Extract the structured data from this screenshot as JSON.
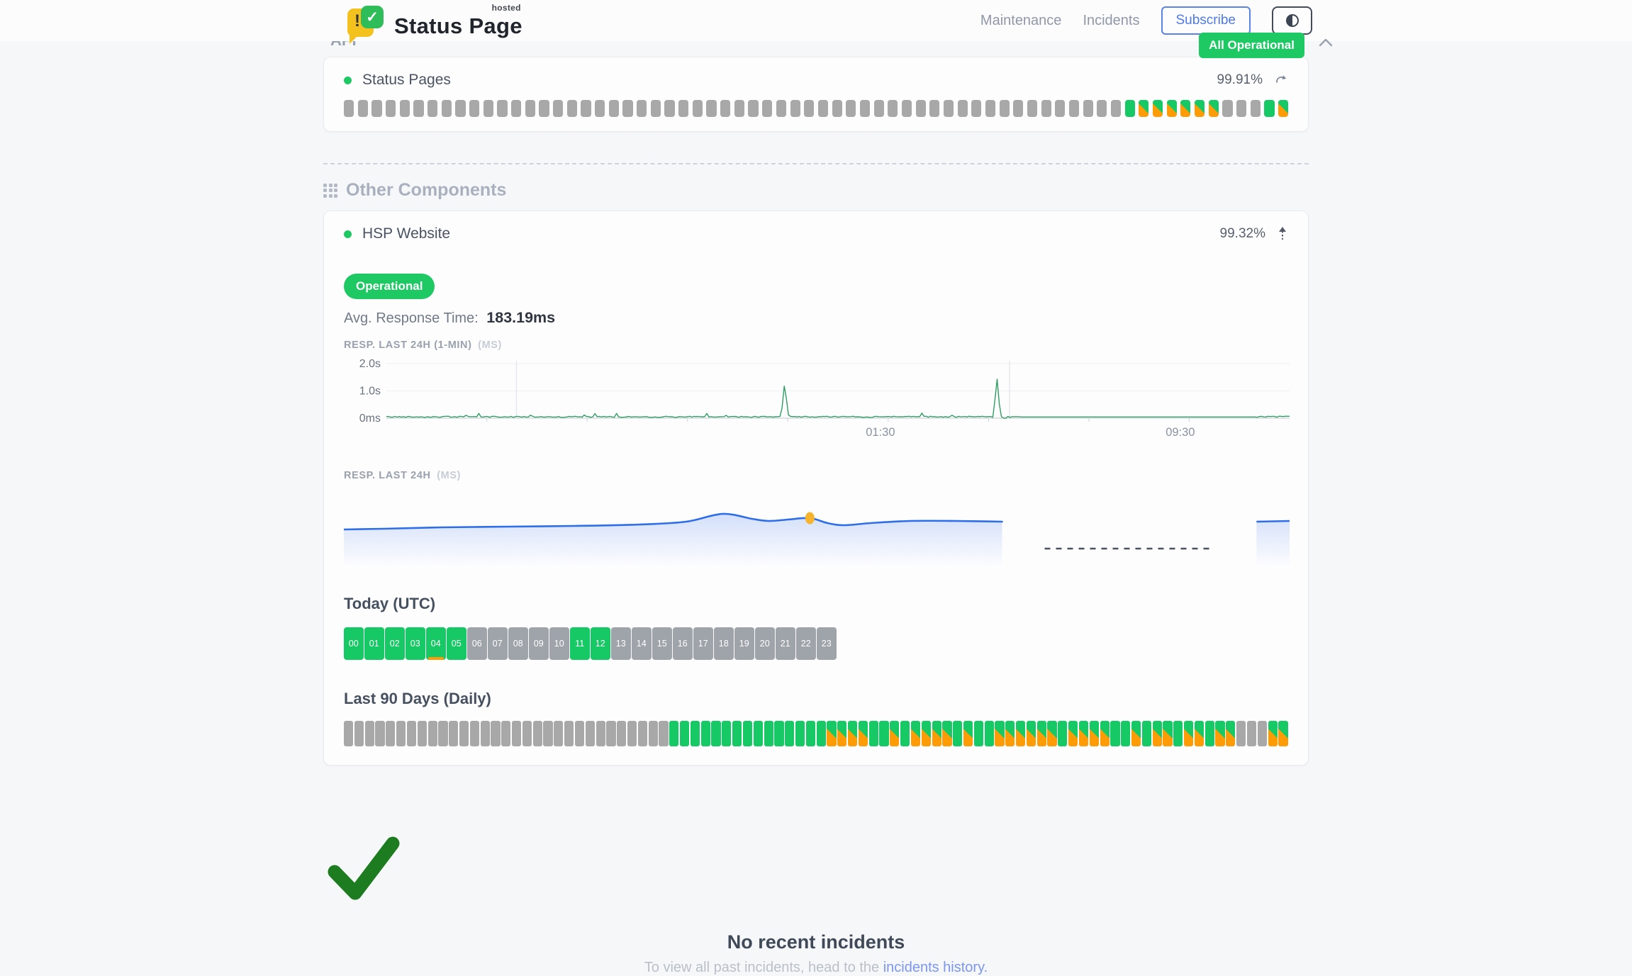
{
  "header": {
    "brand": {
      "title": "Status Page",
      "superscript": "hosted",
      "logo_mark": "!",
      "logo_check": "✓"
    },
    "nav": [
      {
        "label": "Maintenance"
      },
      {
        "label": "Incidents"
      }
    ],
    "subscribe_label": "Subscribe",
    "overall_status": "All Operational"
  },
  "icons": {
    "theme_toggle": "half-filled-circle",
    "refresh": "curved-arrow",
    "trend_up": "dashed-up-arrow",
    "chevron_up": "chevron-up",
    "section_grid": "grid-3x3-dots",
    "status_dot": "green-circle",
    "success_check": "checkmark"
  },
  "colors": {
    "operational_green": "#1ec964",
    "degraded_orange": "#ff9b05",
    "nodata_gray": "#a8a8a9",
    "line_green": "#2f9e63",
    "line_blue": "#2e6ee8",
    "marker_yellow": "#f6b32b",
    "link_blue": "#7b97ee"
  },
  "sections": {
    "api": {
      "title": "API"
    },
    "other": {
      "title": "Other Components"
    }
  },
  "components": {
    "status_pages": {
      "name": "Status Pages",
      "uptime": "99.91%",
      "bars": "uuuuuuuuuuuuuuuuuuuuuuuuuuuuuuuuuuuuuuuuuuuuuuuuuuuuuuuuoppppppuuuop"
    },
    "hsp_website": {
      "name": "HSP Website",
      "uptime": "99.32%",
      "status_badge": "Operational",
      "avg_response_label": "Avg. Response Time:",
      "avg_response_value": "183.19ms",
      "chart1_label": "RESP. LAST 24H (1-MIN)",
      "chart1_unit": "(MS)",
      "chart2_label": "RESP. LAST 24H",
      "chart2_unit": "(MS)",
      "today_heading": "Today (UTC)",
      "hours": [
        {
          "label": "00",
          "state": "up"
        },
        {
          "label": "01",
          "state": "up"
        },
        {
          "label": "02",
          "state": "up"
        },
        {
          "label": "03",
          "state": "up"
        },
        {
          "label": "04",
          "state": "up",
          "marker": true
        },
        {
          "label": "05",
          "state": "up"
        },
        {
          "label": "06",
          "state": "nodata"
        },
        {
          "label": "07",
          "state": "nodata"
        },
        {
          "label": "08",
          "state": "nodata"
        },
        {
          "label": "09",
          "state": "nodata"
        },
        {
          "label": "10",
          "state": "nodata"
        },
        {
          "label": "11",
          "state": "up"
        },
        {
          "label": "12",
          "state": "up"
        },
        {
          "label": "13",
          "state": "nodata"
        },
        {
          "label": "14",
          "state": "nodata"
        },
        {
          "label": "15",
          "state": "nodata"
        },
        {
          "label": "16",
          "state": "nodata"
        },
        {
          "label": "17",
          "state": "nodata"
        },
        {
          "label": "18",
          "state": "nodata"
        },
        {
          "label": "19",
          "state": "nodata"
        },
        {
          "label": "20",
          "state": "nodata"
        },
        {
          "label": "21",
          "state": "nodata"
        },
        {
          "label": "22",
          "state": "nodata"
        },
        {
          "label": "23",
          "state": "nodata"
        }
      ],
      "last90_heading": "Last 90 Days (Daily)",
      "daily_bars": "uuuuuuuuuuuuuuuuuuuuuuuuuuuuuuuooooooooooooooodddd oodoaplaceholder"
    }
  },
  "daily_bars_exact": "uuuuuuuuuuuuuuuuuuuuuuuuuuuuuuuoooooooooooooooddddoododdddodooddddddoddddoododdoddodduuudd",
  "chart_data": [
    {
      "id": "resp-1min",
      "type": "line",
      "title": "RESP. LAST 24H (1-MIN) (MS)",
      "ylim_ms": [
        0,
        2000
      ],
      "y_tick_labels": [
        "2.0s",
        "1.0s",
        "0ms"
      ],
      "x_tick_labels": [
        {
          "label": "01:30",
          "pos": 0.547
        },
        {
          "label": "09:30",
          "pos": 0.879
        }
      ],
      "vgrid_pos": [
        0.144,
        0.69
      ],
      "baseline_ms": 40,
      "noise_ms": 22,
      "big_spikes": [
        {
          "pos": 0.441,
          "ms": 1350
        },
        {
          "pos": 0.676,
          "ms": 1500
        }
      ],
      "dips": [
        {
          "pos": 0.685,
          "ms": 2
        }
      ],
      "flat_segment": {
        "from": 0.702,
        "to": 0.962,
        "ms": 45
      },
      "line_color": "#2f9e63",
      "grid": true,
      "legend": "none"
    },
    {
      "id": "resp-24h",
      "type": "area",
      "title": "RESP. LAST 24H (MS)",
      "line_color": "#2e6ee8",
      "fill_color": "#4076ea",
      "main_segment_end": 0.696,
      "points": [
        [
          0,
          42
        ],
        [
          0.06,
          41
        ],
        [
          0.15,
          39
        ],
        [
          0.25,
          38
        ],
        [
          0.35,
          37
        ],
        [
          0.45,
          35
        ],
        [
          0.52,
          31
        ],
        [
          0.575,
          20
        ],
        [
          0.62,
          27
        ],
        [
          0.645,
          30
        ],
        [
          0.675,
          28
        ],
        [
          0.708,
          26
        ],
        [
          0.735,
          33
        ],
        [
          0.76,
          36
        ],
        [
          0.8,
          33
        ],
        [
          0.86,
          30
        ],
        [
          0.93,
          30
        ],
        [
          1,
          31
        ]
      ],
      "marker": {
        "x": 0.708,
        "y": 26,
        "color": "#f6b32b"
      },
      "dashed_gap": {
        "from": 0.741,
        "to": 0.918,
        "y": 69
      },
      "resume_segment": {
        "from": 0.965,
        "to": 1.0,
        "y": 31
      },
      "grid": false,
      "legend": "none"
    }
  ],
  "incidents": {
    "title": "No recent incidents",
    "subtitle_prefix": "To view all past incidents, head to the ",
    "link_text": "incidents history."
  }
}
